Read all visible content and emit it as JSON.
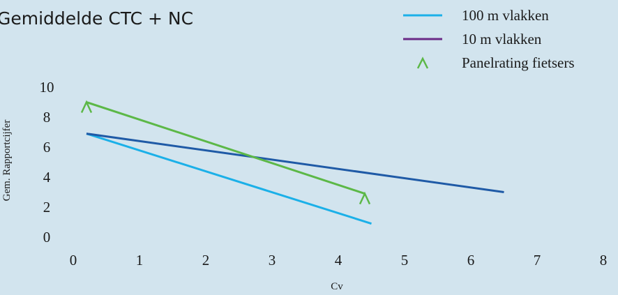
{
  "chart_data": {
    "type": "line",
    "title": "Gemiddelde CTC + NC",
    "xlabel": "Cv",
    "ylabel": "Gem. Rapportcijfer",
    "xlim": [
      0,
      8
    ],
    "ylim": [
      0,
      10
    ],
    "x_ticks": [
      "0",
      "1",
      "2",
      "3",
      "4",
      "5",
      "6",
      "7",
      "8"
    ],
    "y_ticks": [
      "0",
      "2",
      "4",
      "6",
      "8",
      "10"
    ],
    "grid": false,
    "legend_position": "top-right",
    "series": [
      {
        "name": "100 m vlakken",
        "color": "#1bb0e8",
        "marker": "none",
        "x": [
          0.2,
          4.5
        ],
        "y": [
          6.9,
          0.9
        ]
      },
      {
        "name": "10 m vlakken",
        "color": "#6a2a86",
        "line_color": "#1f5aa6",
        "marker": "none",
        "x": [
          0.2,
          6.5
        ],
        "y": [
          6.9,
          3.0
        ]
      },
      {
        "name": "Panelrating fietsers",
        "color": "#5cb847",
        "marker": "caret",
        "x": [
          0.2,
          4.4
        ],
        "y": [
          9.0,
          2.9
        ]
      }
    ]
  }
}
